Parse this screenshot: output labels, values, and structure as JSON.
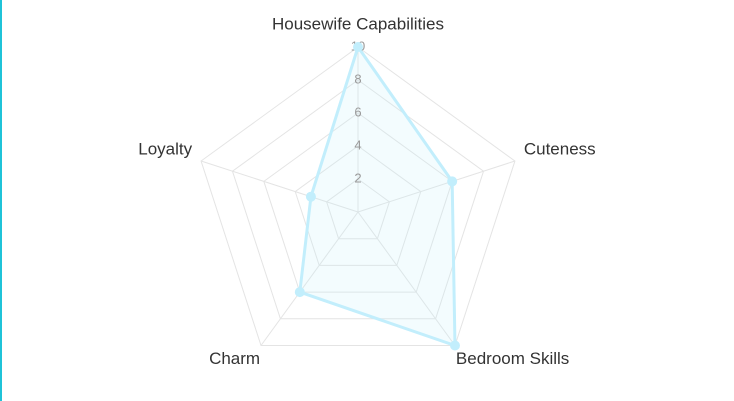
{
  "chart_data": {
    "type": "radar",
    "categories": [
      "Housewife Capabilities",
      "Cuteness",
      "Bedroom Skills",
      "Charm",
      "Loyalty"
    ],
    "values": [
      10,
      6,
      10,
      6,
      3
    ],
    "color": "#c2eefc",
    "rlim": [
      0,
      10
    ],
    "rticks": [
      2,
      4,
      6,
      8,
      10
    ],
    "grid": true
  }
}
